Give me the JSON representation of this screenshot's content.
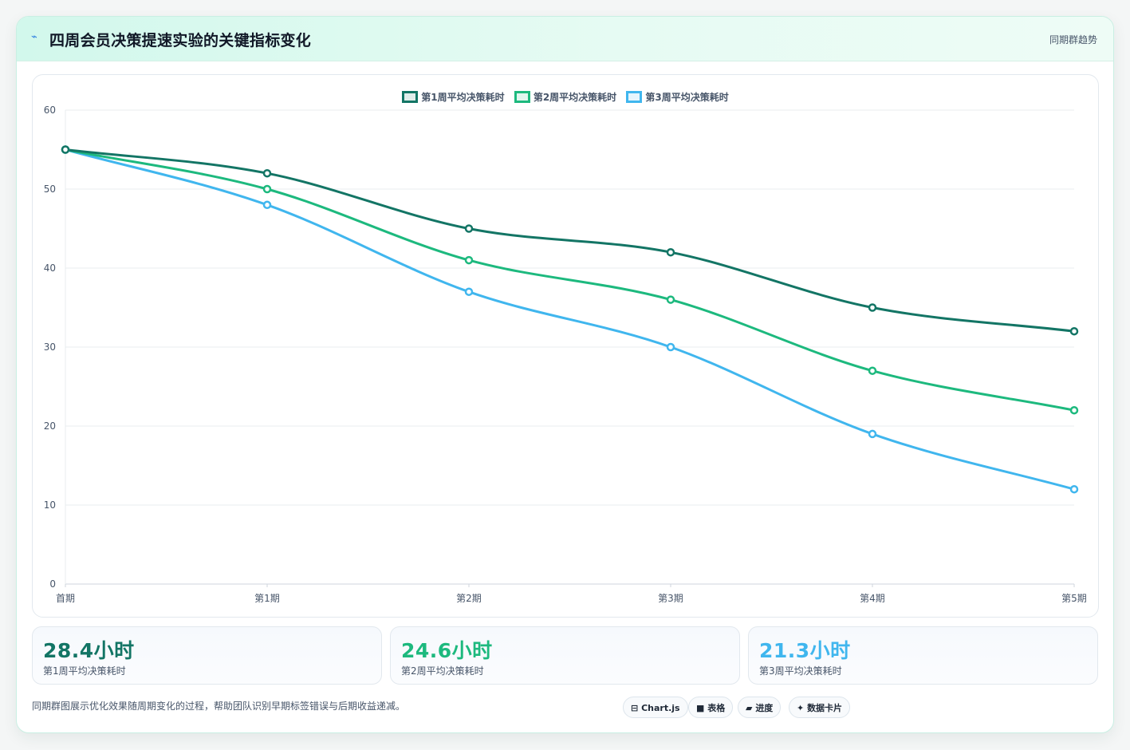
{
  "header": {
    "icon": "pulse-icon",
    "title": "四周会员决策提速实验的关键指标变化",
    "badge": "同期群趋势"
  },
  "chart_data": {
    "type": "line",
    "categories": [
      "首期",
      "第1期",
      "第2期",
      "第3期",
      "第4期",
      "第5期"
    ],
    "ylim": [
      0,
      60
    ],
    "yticks": [
      "0",
      "10",
      "20",
      "30",
      "40",
      "50",
      "60"
    ],
    "grid": true,
    "legend_position": "top-center",
    "series": [
      {
        "name": "第1周平均决策耗时",
        "color": "#137565",
        "values": [
          55,
          52,
          45,
          42,
          35,
          32
        ]
      },
      {
        "name": "第2周平均决策耗时",
        "color": "#1db97e",
        "values": [
          55,
          50,
          41,
          36,
          27,
          22
        ]
      },
      {
        "name": "第3周平均决策耗时",
        "color": "#40b6ee",
        "values": [
          55,
          48,
          37,
          30,
          19,
          12
        ]
      }
    ]
  },
  "stats": [
    {
      "value": "28.4小时",
      "label": "第1周平均决策耗时",
      "color": "#137565"
    },
    {
      "value": "24.6小时",
      "label": "第2周平均决策耗时",
      "color": "#1db97e"
    },
    {
      "value": "21.3小时",
      "label": "第3周平均决策耗时",
      "color": "#40b6ee"
    }
  ],
  "footer": {
    "text": "同期群图展示优化效果随周期变化的过程，帮助团队识别早期标签错误与后期收益递减。",
    "tags": [
      {
        "icon": "chart-icon",
        "glyph": "⊟",
        "label": "Chart.js"
      },
      {
        "icon": "table-icon",
        "glyph": "■",
        "label": "表格"
      },
      {
        "icon": "progress-icon",
        "glyph": "▰",
        "label": "进度"
      },
      {
        "icon": "card-icon",
        "glyph": "✦",
        "label": "数据卡片"
      }
    ]
  }
}
